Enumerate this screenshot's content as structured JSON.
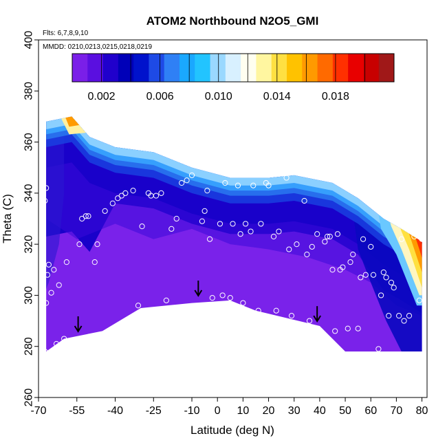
{
  "chart_data": {
    "type": "contour",
    "title": "ATOM2 Northbound N2O5_GMI",
    "annotations": {
      "flights": "Flts: 6,7,8,9,10",
      "dates": "MMDD: 0210,0213,0215,0218,0219"
    },
    "xlabel": "Latitude (deg N)",
    "ylabel": "Theta (C)",
    "xlim": [
      -70,
      82
    ],
    "ylim": [
      260,
      400
    ],
    "xticks": [
      -70,
      -55,
      -40,
      -25,
      -10,
      0,
      10,
      20,
      30,
      40,
      50,
      60,
      70,
      80
    ],
    "yticks": [
      260,
      280,
      300,
      320,
      340,
      360,
      380,
      400
    ],
    "colorbar": {
      "range": [
        0,
        0.022
      ],
      "tick_values": [
        0.002,
        0.006,
        0.01,
        0.014,
        0.018
      ],
      "tick_labels": [
        "0.002",
        "0.006",
        "0.010",
        "0.014",
        "0.018"
      ],
      "colors": [
        "#7a1fe8",
        "#5a0fe0",
        "#2000cc",
        "#0000b8",
        "#0012cc",
        "#1e4ae6",
        "#2f80f5",
        "#1aa8ff",
        "#22c4ff",
        "#9ad8ff",
        "#d8f0ff",
        "#fffff0",
        "#fff6a0",
        "#ffe042",
        "#ffc200",
        "#ff9a00",
        "#ff6a00",
        "#ff3000",
        "#e80000",
        "#c80000",
        "#a01818"
      ]
    },
    "data_top_boundary": [
      [
        -67,
        368
      ],
      [
        -57,
        370
      ],
      [
        -50,
        362
      ],
      [
        -40,
        358
      ],
      [
        -25,
        356
      ],
      [
        -10,
        350
      ],
      [
        5,
        346
      ],
      [
        20,
        346
      ],
      [
        30,
        347
      ],
      [
        45,
        344
      ],
      [
        55,
        338
      ],
      [
        65,
        330
      ],
      [
        72,
        326
      ],
      [
        80,
        321
      ]
    ],
    "data_bottom_boundary": [
      [
        -67,
        278
      ],
      [
        -60,
        283
      ],
      [
        -45,
        286
      ],
      [
        -30,
        295
      ],
      [
        -10,
        297
      ],
      [
        5,
        298
      ],
      [
        15,
        294
      ],
      [
        40,
        288
      ],
      [
        50,
        278
      ],
      [
        80,
        278
      ]
    ],
    "arrows": [
      [
        -54.5,
        288
      ],
      [
        -7.5,
        302
      ],
      [
        39,
        292
      ]
    ],
    "observations": [
      [
        -67,
        342
      ],
      [
        -67.5,
        337
      ],
      [
        -66,
        312
      ],
      [
        -66.5,
        308
      ],
      [
        -67,
        297
      ],
      [
        -67.5,
        278
      ],
      [
        -65,
        301
      ],
      [
        -64,
        310
      ],
      [
        -63,
        281
      ],
      [
        -62,
        304
      ],
      [
        -60,
        283
      ],
      [
        -59,
        313
      ],
      [
        -54,
        320
      ],
      [
        -53,
        330
      ],
      [
        -51.5,
        331
      ],
      [
        -50.5,
        331
      ],
      [
        -48,
        313
      ],
      [
        -47,
        320
      ],
      [
        -44,
        333
      ],
      [
        -42,
        285
      ],
      [
        -41,
        336
      ],
      [
        -39,
        338
      ],
      [
        -37.5,
        339
      ],
      [
        -36,
        340
      ],
      [
        -33,
        341
      ],
      [
        -31,
        296
      ],
      [
        -29.5,
        327
      ],
      [
        -27,
        340
      ],
      [
        -26,
        339
      ],
      [
        -24,
        339
      ],
      [
        -22,
        340
      ],
      [
        -20,
        298
      ],
      [
        -18,
        326
      ],
      [
        -16,
        330
      ],
      [
        -14,
        344
      ],
      [
        -12,
        345
      ],
      [
        -10,
        347
      ],
      [
        -6,
        329
      ],
      [
        -5,
        333
      ],
      [
        -4,
        341
      ],
      [
        -3,
        322
      ],
      [
        -2,
        299
      ],
      [
        1,
        328
      ],
      [
        2,
        300
      ],
      [
        3,
        344
      ],
      [
        5,
        299
      ],
      [
        6,
        328
      ],
      [
        8,
        343
      ],
      [
        9,
        324
      ],
      [
        10,
        297
      ],
      [
        11,
        328
      ],
      [
        13,
        325
      ],
      [
        14,
        343
      ],
      [
        16,
        294
      ],
      [
        17,
        328
      ],
      [
        19,
        344
      ],
      [
        20,
        343
      ],
      [
        22,
        323
      ],
      [
        23,
        294
      ],
      [
        24,
        325
      ],
      [
        27,
        346
      ],
      [
        28,
        318
      ],
      [
        29,
        292
      ],
      [
        31,
        320
      ],
      [
        34,
        337
      ],
      [
        35,
        316
      ],
      [
        36,
        290
      ],
      [
        37,
        319
      ],
      [
        39,
        324
      ],
      [
        42,
        321
      ],
      [
        43,
        323
      ],
      [
        44,
        323
      ],
      [
        45,
        310
      ],
      [
        46,
        286
      ],
      [
        47,
        324
      ],
      [
        48,
        310
      ],
      [
        49,
        311
      ],
      [
        51,
        287
      ],
      [
        52,
        313
      ],
      [
        53,
        316
      ],
      [
        55,
        287
      ],
      [
        56,
        307
      ],
      [
        57,
        322
      ],
      [
        58,
        308
      ],
      [
        60,
        319
      ],
      [
        61,
        308
      ],
      [
        63,
        279
      ],
      [
        64,
        300
      ],
      [
        65,
        309
      ],
      [
        66,
        307
      ],
      [
        67,
        292
      ],
      [
        68,
        305
      ],
      [
        69,
        303
      ],
      [
        71,
        292
      ],
      [
        72,
        322
      ],
      [
        73,
        290
      ],
      [
        75,
        292
      ],
      [
        77,
        323
      ],
      [
        79,
        298
      ],
      [
        80,
        322
      ]
    ]
  }
}
